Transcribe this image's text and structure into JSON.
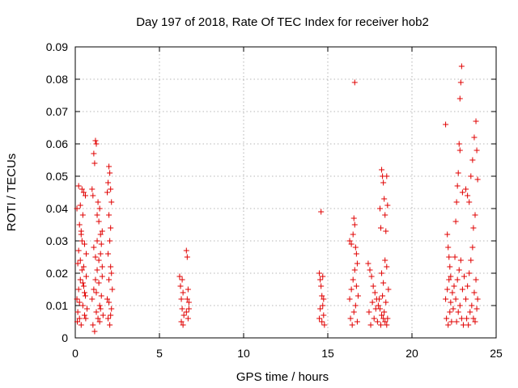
{
  "chart_data": {
    "type": "scatter",
    "title": "Day 197 of 2018, Rate Of TEC Index for receiver hob2",
    "xlabel": "GPS time / hours",
    "ylabel": "ROTI / TECUs",
    "xlim": [
      0,
      25
    ],
    "ylim": [
      0,
      0.09
    ],
    "x_ticks": [
      0,
      5,
      10,
      15,
      20,
      25
    ],
    "y_ticks": [
      0,
      0.01,
      0.02,
      0.03,
      0.04,
      0.05,
      0.06,
      0.07,
      0.08,
      0.09
    ],
    "x_tick_labels": [
      "0",
      "5",
      "10",
      "15",
      "20",
      "25"
    ],
    "y_tick_labels": [
      "0",
      "0.01",
      "0.02",
      "0.03",
      "0.04",
      "0.05",
      "0.06",
      "0.07",
      "0.08",
      "0.09"
    ],
    "grid": true,
    "marker": "+",
    "color": "#e00000",
    "series": [
      {
        "points": [
          [
            0.1,
            0.04
          ],
          [
            0.15,
            0.023
          ],
          [
            0.2,
            0.047
          ],
          [
            0.25,
            0.035
          ],
          [
            0.3,
            0.041
          ],
          [
            0.35,
            0.032
          ],
          [
            0.4,
            0.046
          ],
          [
            0.45,
            0.038
          ],
          [
            0.5,
            0.045
          ],
          [
            0.55,
            0.029
          ],
          [
            0.6,
            0.044
          ],
          [
            0.65,
            0.026
          ],
          [
            0.1,
            0.012
          ],
          [
            0.15,
            0.008
          ],
          [
            0.2,
            0.015
          ],
          [
            0.25,
            0.006
          ],
          [
            0.3,
            0.018
          ],
          [
            0.35,
            0.004
          ],
          [
            0.4,
            0.021
          ],
          [
            0.45,
            0.01
          ],
          [
            0.5,
            0.016
          ],
          [
            0.55,
            0.007
          ],
          [
            0.6,
            0.013
          ],
          [
            0.65,
            0.019
          ],
          [
            0.7,
            0.009
          ],
          [
            0.2,
            0.027
          ],
          [
            0.3,
            0.024
          ],
          [
            0.4,
            0.03
          ],
          [
            0.5,
            0.022
          ],
          [
            0.35,
            0.033
          ],
          [
            0.45,
            0.017
          ],
          [
            0.25,
            0.011
          ],
          [
            0.55,
            0.014
          ],
          [
            0.12,
            0.005
          ],
          [
            0.62,
            0.006
          ],
          [
            1.0,
            0.046
          ],
          [
            1.05,
            0.044
          ],
          [
            1.1,
            0.057
          ],
          [
            1.15,
            0.054
          ],
          [
            1.2,
            0.061
          ],
          [
            1.25,
            0.06
          ],
          [
            1.3,
            0.038
          ],
          [
            1.35,
            0.042
          ],
          [
            1.4,
            0.036
          ],
          [
            1.45,
            0.04
          ],
          [
            1.5,
            0.032
          ],
          [
            1.55,
            0.029
          ],
          [
            1.6,
            0.033
          ],
          [
            1.0,
            0.012
          ],
          [
            1.05,
            0.004
          ],
          [
            1.1,
            0.015
          ],
          [
            1.15,
            0.002
          ],
          [
            1.2,
            0.018
          ],
          [
            1.25,
            0.008
          ],
          [
            1.3,
            0.021
          ],
          [
            1.35,
            0.006
          ],
          [
            1.4,
            0.024
          ],
          [
            1.45,
            0.01
          ],
          [
            1.5,
            0.026
          ],
          [
            1.55,
            0.013
          ],
          [
            1.6,
            0.019
          ],
          [
            1.65,
            0.007
          ],
          [
            1.1,
            0.028
          ],
          [
            1.2,
            0.025
          ],
          [
            1.3,
            0.03
          ],
          [
            1.4,
            0.017
          ],
          [
            1.5,
            0.009
          ],
          [
            1.6,
            0.022
          ],
          [
            1.25,
            0.014
          ],
          [
            1.45,
            0.005
          ],
          [
            1.9,
            0.045
          ],
          [
            1.95,
            0.048
          ],
          [
            2.0,
            0.053
          ],
          [
            2.05,
            0.051
          ],
          [
            2.1,
            0.046
          ],
          [
            2.15,
            0.042
          ],
          [
            2.0,
            0.038
          ],
          [
            2.1,
            0.034
          ],
          [
            1.9,
            0.012
          ],
          [
            1.95,
            0.006
          ],
          [
            2.0,
            0.018
          ],
          [
            2.05,
            0.004
          ],
          [
            2.1,
            0.022
          ],
          [
            2.15,
            0.009
          ],
          [
            2.2,
            0.015
          ],
          [
            1.95,
            0.026
          ],
          [
            2.05,
            0.03
          ],
          [
            2.15,
            0.02
          ],
          [
            2.0,
            0.011
          ],
          [
            2.1,
            0.007
          ],
          [
            6.2,
            0.019
          ],
          [
            6.25,
            0.016
          ],
          [
            6.3,
            0.012
          ],
          [
            6.35,
            0.009
          ],
          [
            6.4,
            0.014
          ],
          [
            6.45,
            0.007
          ],
          [
            6.3,
            0.005
          ],
          [
            6.4,
            0.004
          ],
          [
            6.35,
            0.018
          ],
          [
            6.6,
            0.027
          ],
          [
            6.65,
            0.025
          ],
          [
            6.7,
            0.015
          ],
          [
            6.75,
            0.011
          ],
          [
            6.6,
            0.008
          ],
          [
            6.7,
            0.006
          ],
          [
            6.65,
            0.012
          ],
          [
            6.75,
            0.009
          ],
          [
            14.6,
            0.039
          ],
          [
            14.5,
            0.02
          ],
          [
            14.55,
            0.018
          ],
          [
            14.6,
            0.016
          ],
          [
            14.65,
            0.013
          ],
          [
            14.7,
            0.01
          ],
          [
            14.75,
            0.007
          ],
          [
            14.8,
            0.004
          ],
          [
            14.55,
            0.009
          ],
          [
            14.65,
            0.005
          ],
          [
            14.75,
            0.012
          ],
          [
            14.5,
            0.006
          ],
          [
            14.7,
            0.019
          ],
          [
            16.3,
            0.03
          ],
          [
            16.4,
            0.029
          ],
          [
            16.5,
            0.032
          ],
          [
            16.55,
            0.037
          ],
          [
            16.6,
            0.035
          ],
          [
            16.65,
            0.028
          ],
          [
            16.7,
            0.026
          ],
          [
            16.75,
            0.023
          ],
          [
            16.3,
            0.012
          ],
          [
            16.35,
            0.006
          ],
          [
            16.4,
            0.015
          ],
          [
            16.45,
            0.004
          ],
          [
            16.5,
            0.018
          ],
          [
            16.55,
            0.008
          ],
          [
            16.6,
            0.021
          ],
          [
            16.65,
            0.01
          ],
          [
            16.7,
            0.016
          ],
          [
            16.75,
            0.005
          ],
          [
            16.8,
            0.013
          ],
          [
            16.6,
            0.079
          ],
          [
            17.4,
            0.023
          ],
          [
            17.5,
            0.021
          ],
          [
            17.6,
            0.019
          ],
          [
            17.7,
            0.016
          ],
          [
            17.8,
            0.014
          ],
          [
            17.9,
            0.012
          ],
          [
            18.0,
            0.01
          ],
          [
            18.1,
            0.009
          ],
          [
            18.2,
            0.007
          ],
          [
            18.3,
            0.006
          ],
          [
            18.4,
            0.005
          ],
          [
            18.5,
            0.004
          ],
          [
            17.45,
            0.008
          ],
          [
            17.55,
            0.004
          ],
          [
            17.65,
            0.011
          ],
          [
            17.75,
            0.006
          ],
          [
            17.85,
            0.009
          ],
          [
            17.95,
            0.005
          ],
          [
            18.05,
            0.012
          ],
          [
            18.15,
            0.004
          ],
          [
            18.25,
            0.013
          ],
          [
            18.35,
            0.008
          ],
          [
            18.45,
            0.011
          ],
          [
            18.55,
            0.006
          ],
          [
            18.1,
            0.04
          ],
          [
            18.15,
            0.034
          ],
          [
            18.2,
            0.052
          ],
          [
            18.25,
            0.05
          ],
          [
            18.3,
            0.048
          ],
          [
            18.35,
            0.043
          ],
          [
            18.4,
            0.038
          ],
          [
            18.45,
            0.033
          ],
          [
            18.5,
            0.05
          ],
          [
            18.55,
            0.041
          ],
          [
            18.2,
            0.02
          ],
          [
            18.3,
            0.017
          ],
          [
            18.4,
            0.024
          ],
          [
            18.5,
            0.022
          ],
          [
            18.6,
            0.015
          ],
          [
            22.0,
            0.066
          ],
          [
            22.1,
            0.032
          ],
          [
            22.15,
            0.028
          ],
          [
            22.2,
            0.025
          ],
          [
            22.25,
            0.022
          ],
          [
            22.3,
            0.019
          ],
          [
            22.0,
            0.012
          ],
          [
            22.05,
            0.006
          ],
          [
            22.1,
            0.015
          ],
          [
            22.15,
            0.004
          ],
          [
            22.2,
            0.018
          ],
          [
            22.25,
            0.008
          ],
          [
            22.3,
            0.011
          ],
          [
            22.35,
            0.005
          ],
          [
            22.4,
            0.014
          ],
          [
            22.45,
            0.009
          ],
          [
            22.5,
            0.016
          ],
          [
            22.55,
            0.025
          ],
          [
            22.6,
            0.036
          ],
          [
            22.65,
            0.042
          ],
          [
            22.7,
            0.047
          ],
          [
            22.75,
            0.051
          ],
          [
            22.8,
            0.06
          ],
          [
            22.85,
            0.058
          ],
          [
            22.9,
            0.079
          ],
          [
            22.95,
            0.084
          ],
          [
            22.85,
            0.074
          ],
          [
            23.0,
            0.045
          ],
          [
            22.6,
            0.012
          ],
          [
            22.65,
            0.005
          ],
          [
            22.7,
            0.018
          ],
          [
            22.75,
            0.008
          ],
          [
            22.8,
            0.021
          ],
          [
            22.85,
            0.01
          ],
          [
            22.9,
            0.024
          ],
          [
            22.95,
            0.006
          ],
          [
            23.0,
            0.015
          ],
          [
            23.05,
            0.004
          ],
          [
            23.1,
            0.019
          ],
          [
            23.2,
            0.046
          ],
          [
            23.3,
            0.044
          ],
          [
            23.4,
            0.042
          ],
          [
            23.5,
            0.05
          ],
          [
            23.6,
            0.055
          ],
          [
            23.7,
            0.062
          ],
          [
            23.8,
            0.067
          ],
          [
            23.85,
            0.058
          ],
          [
            23.9,
            0.049
          ],
          [
            23.75,
            0.038
          ],
          [
            23.65,
            0.034
          ],
          [
            23.2,
            0.012
          ],
          [
            23.25,
            0.006
          ],
          [
            23.3,
            0.016
          ],
          [
            23.35,
            0.004
          ],
          [
            23.4,
            0.02
          ],
          [
            23.45,
            0.008
          ],
          [
            23.5,
            0.024
          ],
          [
            23.55,
            0.01
          ],
          [
            23.6,
            0.028
          ],
          [
            23.65,
            0.006
          ],
          [
            23.7,
            0.014
          ],
          [
            23.75,
            0.005
          ],
          [
            23.8,
            0.018
          ],
          [
            23.85,
            0.009
          ],
          [
            23.9,
            0.012
          ]
        ]
      }
    ]
  }
}
